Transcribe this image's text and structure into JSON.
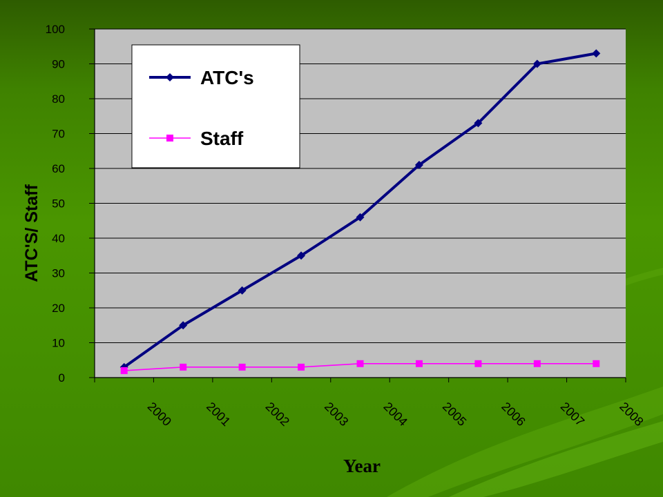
{
  "chart_data": {
    "type": "line",
    "categories": [
      "2000",
      "2001",
      "2002",
      "2003",
      "2004",
      "2005",
      "2006",
      "2007",
      "2008"
    ],
    "series": [
      {
        "name": "ATC's",
        "values": [
          3,
          15,
          25,
          35,
          46,
          61,
          73,
          90,
          93
        ],
        "color": "#000080",
        "marker": "diamond"
      },
      {
        "name": "Staff",
        "values": [
          2,
          3,
          3,
          3,
          4,
          4,
          4,
          4,
          4
        ],
        "color": "#ff00ff",
        "marker": "square"
      }
    ],
    "title": "",
    "xlabel": "Year",
    "ylabel": "ATC'S/ Staff",
    "ylim": [
      0,
      100
    ],
    "yticks": [
      "0",
      "10",
      "20",
      "30",
      "40",
      "50",
      "60",
      "70",
      "80",
      "90",
      "100"
    ],
    "grid": true,
    "legend": "top-left"
  },
  "colors": {
    "plot_background": "#c0c0c0",
    "gridline": "#000000",
    "slide_background": "#3f8800"
  }
}
